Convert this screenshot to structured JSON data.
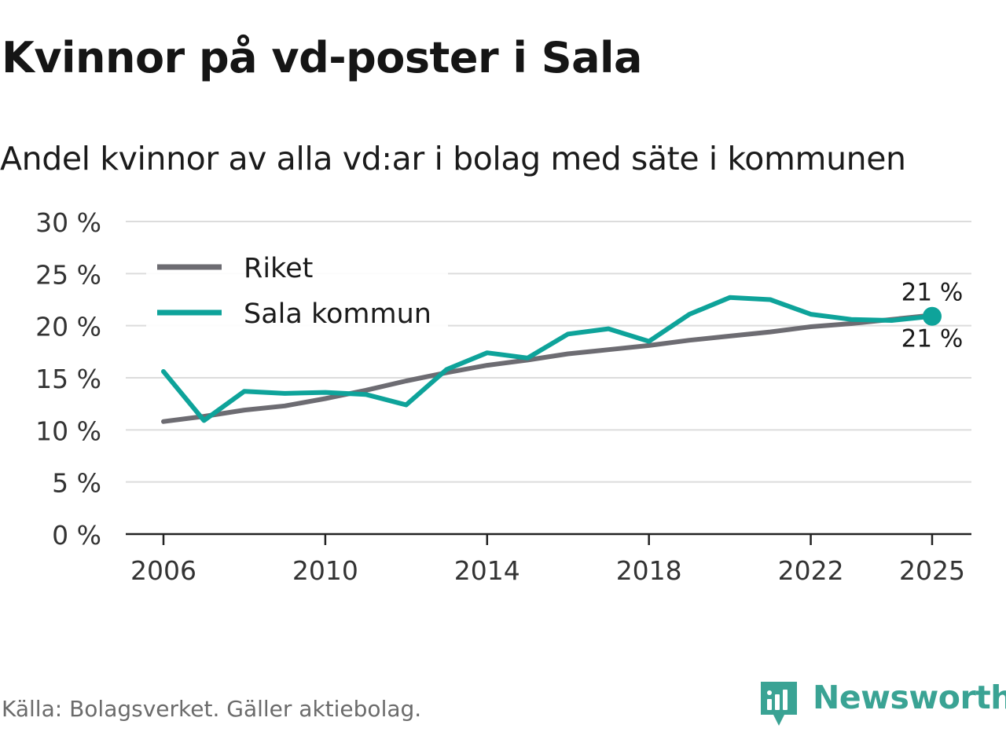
{
  "header": {
    "title": "Kvinnor på vd-poster i Sala",
    "subtitle": "Andel kvinnor av alla vd:ar i bolag med säte i kommunen"
  },
  "footer": {
    "source": "Källa: Bolagsverket. Gäller aktiebolag.",
    "brand": "Newsworthy"
  },
  "colors": {
    "riket": "#6d6c72",
    "sala": "#0ea39a",
    "grid": "#dcdcdc",
    "axis": "#222222",
    "brand": "#3aa394"
  },
  "chart_data": {
    "type": "line",
    "title": "Kvinnor på vd-poster i Sala",
    "subtitle": "Andel kvinnor av alla vd:ar i bolag med säte i kommunen",
    "x": [
      2006,
      2007,
      2008,
      2009,
      2010,
      2011,
      2012,
      2013,
      2014,
      2015,
      2016,
      2017,
      2018,
      2019,
      2020,
      2021,
      2022,
      2023,
      2024,
      2025
    ],
    "xticks": [
      2006,
      2010,
      2014,
      2018,
      2022,
      2025
    ],
    "ylim": [
      0,
      30
    ],
    "yticks": [
      0,
      5,
      10,
      15,
      20,
      25,
      30
    ],
    "ytick_labels": [
      "0 %",
      "5 %",
      "10 %",
      "15 %",
      "20 %",
      "25 %",
      "30 %"
    ],
    "grid": true,
    "legend_position": "top-left",
    "series": [
      {
        "name": "Riket",
        "values": [
          10.8,
          11.3,
          11.9,
          12.3,
          13.0,
          13.8,
          14.7,
          15.5,
          16.2,
          16.7,
          17.3,
          17.7,
          18.1,
          18.6,
          19.0,
          19.4,
          19.9,
          20.2,
          20.6,
          21.0
        ],
        "end_label": "21 %"
      },
      {
        "name": "Sala kommun",
        "values": [
          15.6,
          10.9,
          13.7,
          13.5,
          13.6,
          13.4,
          12.4,
          15.8,
          17.4,
          16.9,
          19.2,
          19.7,
          18.5,
          21.1,
          22.7,
          22.5,
          21.1,
          20.6,
          20.5,
          20.9
        ],
        "end_label": "21 %"
      }
    ]
  }
}
